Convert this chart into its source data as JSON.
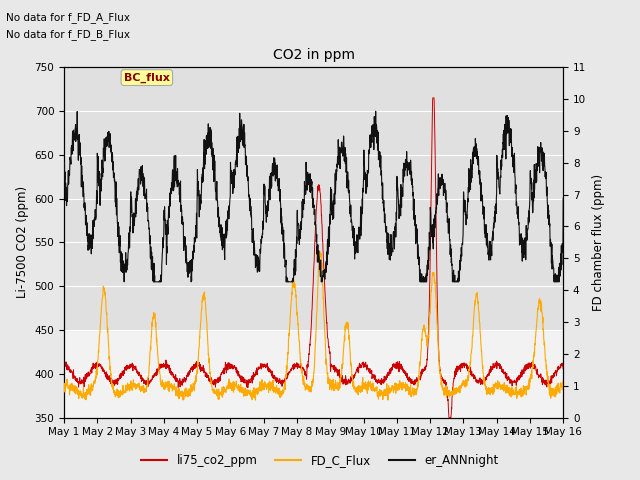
{
  "title": "CO2 in ppm",
  "ylabel_left": "Li-7500 CO2 (ppm)",
  "ylabel_right": "FD chamber flux (ppm)",
  "ylim_left": [
    350,
    750
  ],
  "ylim_right": [
    0.0,
    11.0
  ],
  "yticks_left": [
    350,
    400,
    450,
    500,
    550,
    600,
    650,
    700,
    750
  ],
  "yticks_right": [
    0.0,
    1.0,
    2.0,
    3.0,
    4.0,
    5.0,
    6.0,
    7.0,
    8.0,
    9.0,
    10.0,
    11.0
  ],
  "xtick_labels": [
    "May 1",
    "May 2",
    "May 3",
    "May 4",
    "May 5",
    "May 6",
    "May 7",
    "May 8",
    "May 9",
    "May 10",
    "May 11",
    "May 12",
    "May 13",
    "May 14",
    "May 15",
    "May 16"
  ],
  "text_top_left": [
    "No data for f_FD_A_Flux",
    "No data for f_FD_B_Flux"
  ],
  "bc_flux_label": "BC_flux",
  "legend_labels": [
    "li75_co2_ppm",
    "FD_C_Flux",
    "er_ANNnight"
  ],
  "legend_colors": [
    "#cc0000",
    "#ffaa00",
    "#111111"
  ],
  "line_red_color": "#cc0000",
  "line_orange_color": "#ffaa00",
  "line_black_color": "#111111",
  "fig_bg_color": "#e8e8e8",
  "plot_bg_color": "#f2f2f2",
  "upper_band_color": "#e0e0e0",
  "grid_color": "#ffffff",
  "n_points": 2160
}
